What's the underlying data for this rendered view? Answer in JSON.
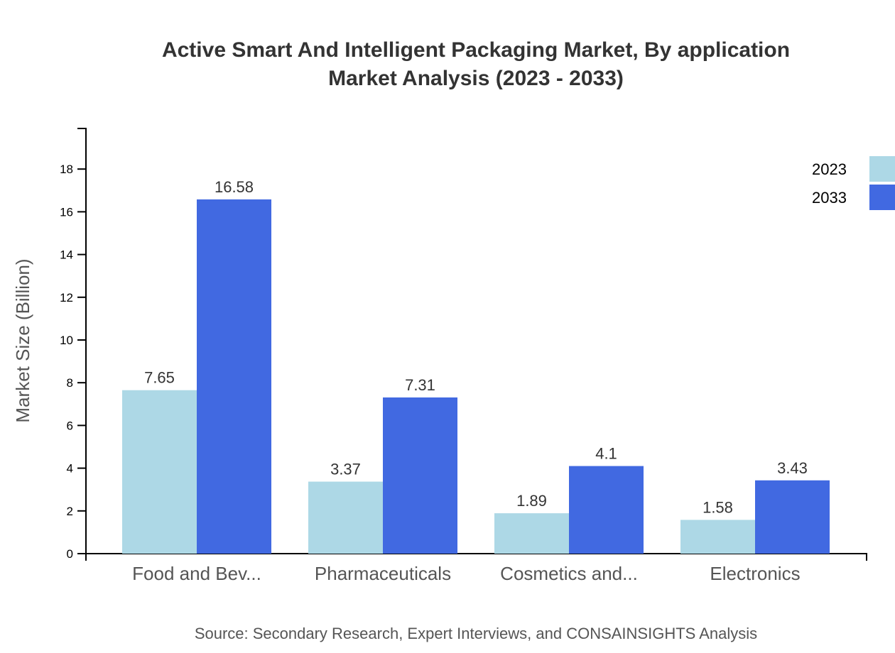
{
  "chart_data": {
    "type": "bar",
    "title": [
      "Active Smart And Intelligent Packaging Market, By application",
      "Market Analysis (2023 - 2033)"
    ],
    "xlabel": "",
    "ylabel": "Market Size (Billion)",
    "categories": [
      "Food and Bev...",
      "Pharmaceuticals",
      "Cosmetics and...",
      "Electronics"
    ],
    "series": [
      {
        "name": "2023",
        "values": [
          7.65,
          3.37,
          1.89,
          1.58
        ],
        "color": "#ADD8E6"
      },
      {
        "name": "2033",
        "values": [
          16.58,
          7.31,
          4.1,
          3.43
        ],
        "color": "#4169E1"
      }
    ],
    "yticks": [
      0,
      2,
      4,
      6,
      8,
      10,
      12,
      14,
      16,
      18
    ],
    "ylim": [
      0,
      19.9
    ],
    "grid": false,
    "legend": "top-right",
    "source": "Source: Secondary Research, Expert Interviews, and CONSAINSIGHTS Analysis"
  }
}
